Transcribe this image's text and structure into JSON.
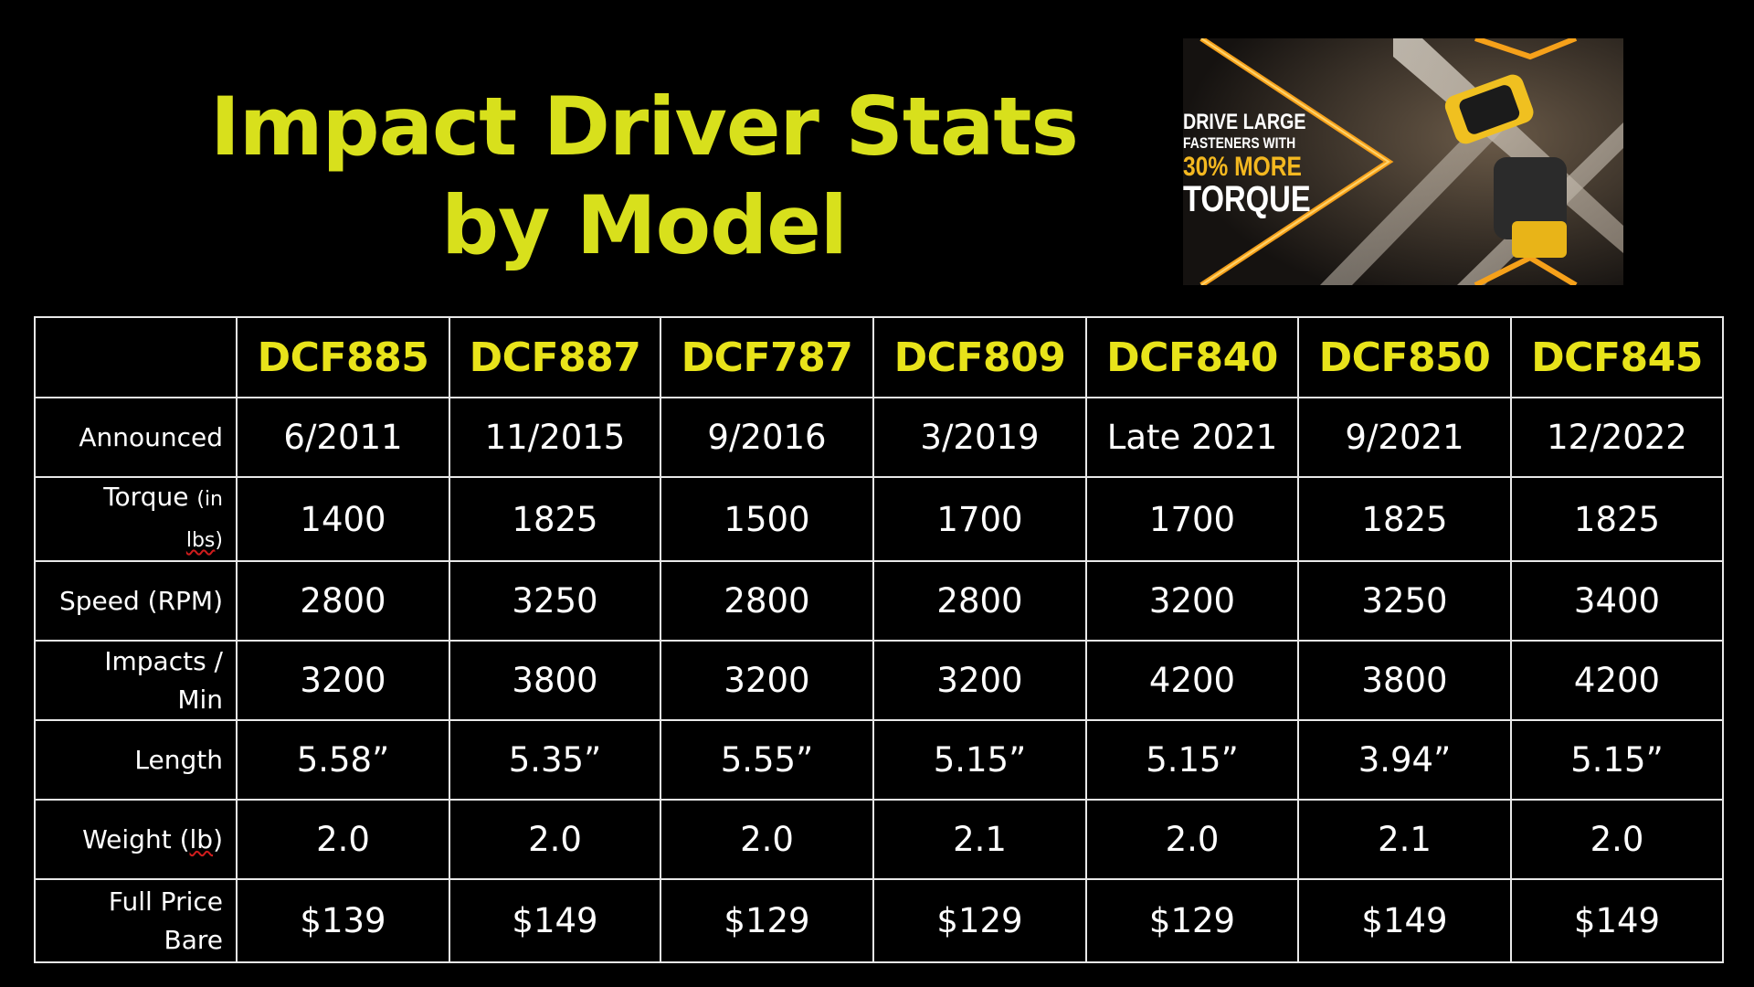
{
  "title": {
    "line1": "Impact Driver Stats",
    "line2": "by Model"
  },
  "promo": {
    "line1": "DRIVE LARGE",
    "line2": "FASTENERS WITH",
    "line3": "30% MORE",
    "line4": "TORQUE"
  },
  "table": {
    "models": [
      "DCF885",
      "DCF887",
      "DCF787",
      "DCF809",
      "DCF840",
      "DCF850",
      "DCF845"
    ],
    "rows": [
      {
        "label": "Announced",
        "values": [
          "6/2011",
          "11/2015",
          "9/2016",
          "3/2019",
          "Late 2021",
          "9/2021",
          "12/2022"
        ]
      },
      {
        "label": "Torque",
        "label_unit_a": "(in",
        "label_unit_b": "lbs",
        "label_unit_c": ")",
        "values": [
          "1400",
          "1825",
          "1500",
          "1700",
          "1700",
          "1825",
          "1825"
        ]
      },
      {
        "label": "Speed (RPM)",
        "values": [
          "2800",
          "3250",
          "2800",
          "2800",
          "3200",
          "3250",
          "3400"
        ]
      },
      {
        "label_a": "Impacts /",
        "label_b": "Min",
        "values": [
          "3200",
          "3800",
          "3200",
          "3200",
          "4200",
          "3800",
          "4200"
        ]
      },
      {
        "label": "Length",
        "values": [
          "5.58”",
          "5.35”",
          "5.55”",
          "5.15”",
          "5.15”",
          "3.94”",
          "5.15”"
        ]
      },
      {
        "label_a": "Weight (",
        "label_b": "lb",
        "label_c": ")",
        "values": [
          "2.0",
          "2.0",
          "2.0",
          "2.1",
          "2.0",
          "2.1",
          "2.0"
        ]
      },
      {
        "label_a": "Full Price",
        "label_b": "Bare",
        "values": [
          "$139",
          "$149",
          "$129",
          "$129",
          "$129",
          "$149",
          "$149"
        ]
      }
    ]
  },
  "colors": {
    "background": "#000000",
    "title": "#d8e01c",
    "model_header": "#e8e31a",
    "promo_accent": "#f4b820",
    "grid": "#e8e8e8"
  }
}
